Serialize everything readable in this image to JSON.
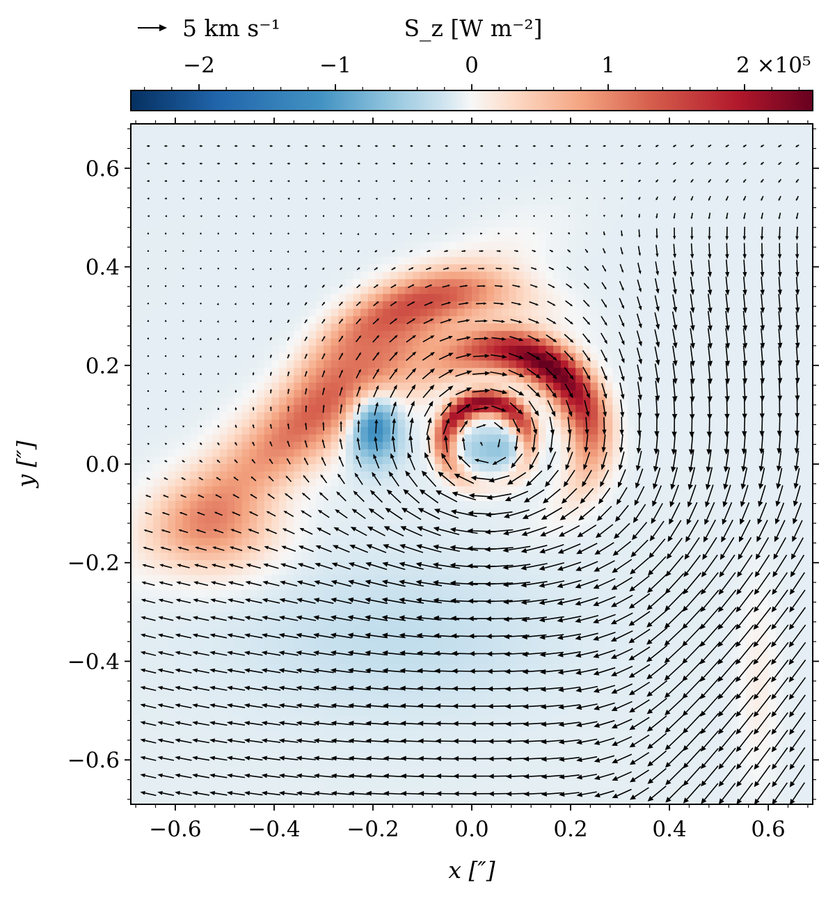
{
  "chart_data": {
    "type": "heatmap",
    "subtype": "scalar field with overlaid velocity vectors (quiver)",
    "xlabel": "x [″]",
    "ylabel": "y [″]",
    "xlim": [
      -0.69,
      0.69
    ],
    "ylim": [
      -0.69,
      0.69
    ],
    "xticks": [
      -0.6,
      -0.4,
      -0.2,
      0.0,
      0.2,
      0.4,
      0.6
    ],
    "xtick_labels": [
      "−0.6",
      "−0.4",
      "−0.2",
      "0.0",
      "0.2",
      "0.4",
      "0.6"
    ],
    "yticks": [
      0.6,
      0.4,
      0.2,
      0.0,
      -0.2,
      -0.4,
      -0.6
    ],
    "ytick_labels": [
      "0.6",
      "0.4",
      "0.2",
      "0.0",
      "−0.2",
      "−0.4",
      "−0.6"
    ],
    "colorbar": {
      "label": "S_z [W m⁻²]",
      "colormap": "RdBu_r",
      "range": [
        -250000,
        250000
      ],
      "ticks": [
        -2,
        -1,
        0,
        1,
        2
      ],
      "tick_labels": [
        "−2",
        "−1",
        "0",
        "1",
        "2 ×10⁵"
      ],
      "scale_factor": "×10⁵",
      "colors": {
        "min": "#053061",
        "low": "#4393c3",
        "mid": "#f7f7f7",
        "high": "#d6604d",
        "max": "#67001f"
      }
    },
    "quiver_reference": {
      "label": "5 km s⁻¹",
      "speed_km_s": 5
    },
    "features": [
      {
        "kind": "positive ring",
        "center": [
          0.03,
          0.04
        ],
        "radius": 0.085,
        "peak_W_m2": 230000
      },
      {
        "kind": "positive spiral arm",
        "center": [
          0.03,
          0.04
        ],
        "radius": 0.2,
        "peak_W_m2": 250000
      },
      {
        "kind": "positive arm",
        "from": [
          -0.55,
          -0.15
        ],
        "to": [
          -0.15,
          0.3
        ],
        "peak_W_m2": 100000
      },
      {
        "kind": "negative lobe",
        "center": [
          -0.2,
          0.08
        ],
        "peak_W_m2": -120000
      }
    ],
    "vortex_center": [
      0.03,
      0.04
    ],
    "grid": false,
    "legend": "none"
  }
}
